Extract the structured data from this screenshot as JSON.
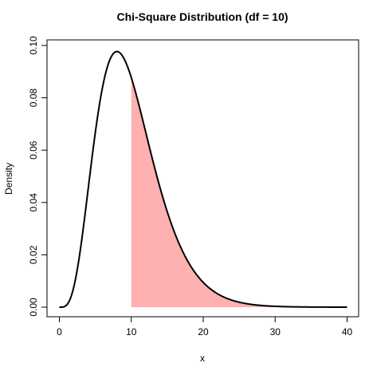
{
  "chart_data": {
    "type": "area",
    "title": "Chi-Square Distribution (df = 10)",
    "xlabel": "x",
    "ylabel": "Density",
    "xlim": [
      0,
      40
    ],
    "ylim": [
      0,
      0.1
    ],
    "x_ticks": [
      0,
      10,
      20,
      30,
      40
    ],
    "y_ticks": [
      0.0,
      0.02,
      0.04,
      0.06,
      0.08,
      0.1
    ],
    "y_tick_labels": [
      "0.00",
      "0.02",
      "0.04",
      "0.06",
      "0.08",
      "0.10"
    ],
    "grid": false,
    "df": 10,
    "shaded_region": {
      "from": 10,
      "to": 40,
      "color": "#ffb0b0"
    },
    "curve_color": "#000000",
    "x": [
      0,
      1,
      2,
      3,
      4,
      5,
      6,
      7,
      8,
      9,
      10,
      11,
      12,
      13,
      14,
      15,
      16,
      17,
      18,
      19,
      20,
      22,
      24,
      26,
      28,
      30,
      32,
      34,
      36,
      38,
      40
    ],
    "y": [
      0.0,
      0.0008,
      0.0077,
      0.0235,
      0.0451,
      0.0668,
      0.084,
      0.0941,
      0.0977,
      0.0952,
      0.0877,
      0.077,
      0.0653,
      0.0534,
      0.0424,
      0.0328,
      0.0248,
      0.0184,
      0.0133,
      0.0095,
      0.0067,
      0.0032,
      0.0015,
      0.0007,
      0.0003,
      0.0001,
      5e-05,
      2e-05,
      1e-05,
      0.0,
      0.0
    ]
  }
}
